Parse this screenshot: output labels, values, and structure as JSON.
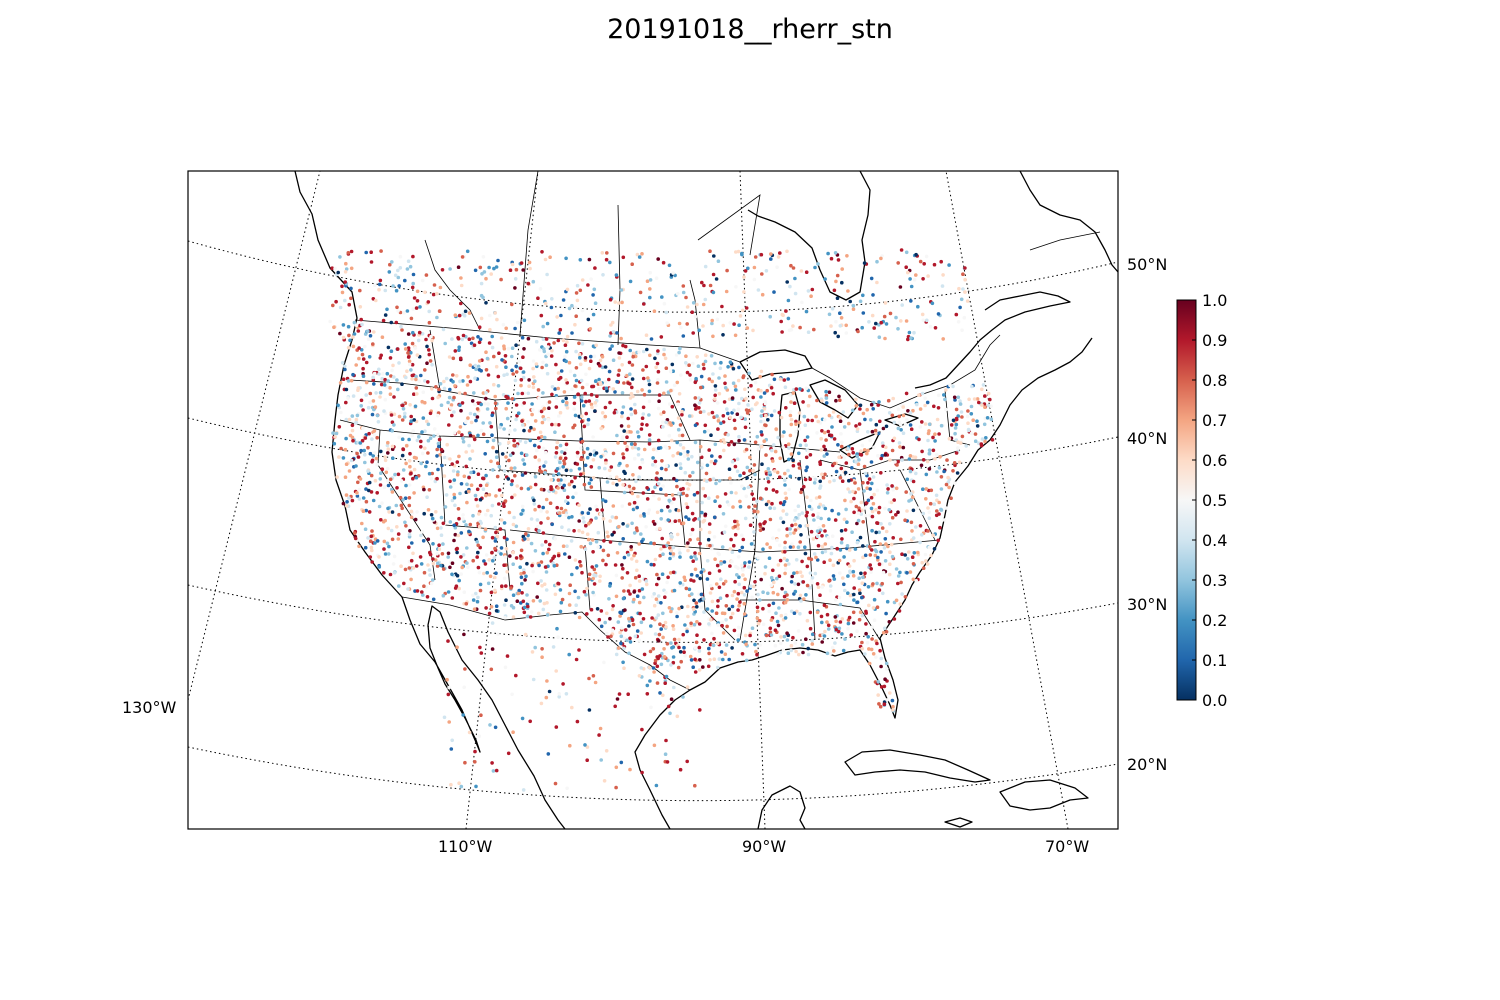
{
  "title": "20191018__rherr_stn",
  "map": {
    "projection": "lambert-conformal",
    "coastlines": true,
    "country_borders": true,
    "state_borders": true,
    "parallels": [
      "20°N",
      "30°N",
      "40°N",
      "50°N"
    ],
    "meridians": [
      "130°W",
      "110°W",
      "90°W",
      "70°W"
    ]
  },
  "colorbar": {
    "colormap": "RdBu_r",
    "min": 0.0,
    "max": 1.0,
    "ticks": [
      "0.0",
      "0.1",
      "0.2",
      "0.3",
      "0.4",
      "0.5",
      "0.6",
      "0.7",
      "0.8",
      "0.9",
      "1.0"
    ],
    "colors": [
      "#053061",
      "#2166ac",
      "#4393c3",
      "#92c5de",
      "#d1e5f0",
      "#f7f7f7",
      "#fddbc7",
      "#f4a582",
      "#d6604d",
      "#b2182b",
      "#67001f"
    ]
  },
  "stations": {
    "marker": "dot",
    "value_range": [
      0.0,
      1.0
    ],
    "coverage": "dense over contiguous US; sparse over southern Canada, Mexico and Caribbean"
  }
}
